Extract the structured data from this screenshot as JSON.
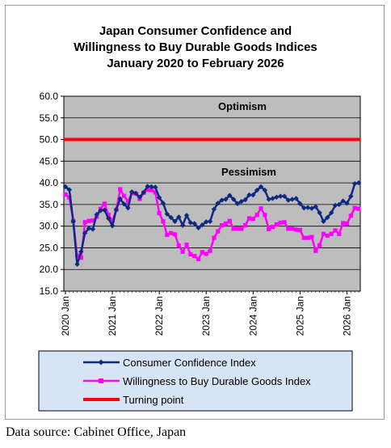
{
  "chart_data": {
    "type": "line",
    "title": [
      "Japan Consumer Confidence and",
      "Willingness to Buy Durable Goods Indices",
      "January 2020 to February 2026"
    ],
    "xlabel": "",
    "ylabel": "",
    "ylim": [
      15,
      60
    ],
    "yticks": [
      "60.0",
      "55.0",
      "50.0",
      "45.0",
      "40.0",
      "35.0",
      "30.0",
      "25.0",
      "20.0",
      "15.0"
    ],
    "xticks": [
      "2020 Jan",
      "2021 Jan",
      "2022 Jan",
      "2023 Jan",
      "2024 Jan",
      "2025 Jan",
      "2026 Jan"
    ],
    "annotations": {
      "upper": "Optimism",
      "lower": "Pessimism"
    },
    "legend_position": "bottom",
    "grid": true,
    "x_start": "2020-01",
    "x_end": "2026-02",
    "series": [
      {
        "name": "Consumer Confidence Index",
        "color": "#0d2a80",
        "marker": "diamond",
        "values": [
          39.1,
          38.4,
          31.1,
          21.2,
          24.1,
          28.4,
          29.5,
          29.3,
          32.7,
          33.6,
          33.7,
          31.8,
          30.1,
          33.8,
          36.3,
          35.1,
          34.2,
          37.9,
          37.6,
          36.7,
          37.8,
          39.2,
          39.1,
          39.0,
          36.6,
          35.3,
          32.8,
          32.0,
          31.1,
          32.1,
          30.2,
          32.5,
          30.8,
          30.6,
          29.6,
          30.3,
          31.0,
          31.1,
          33.9,
          35.3,
          36.0,
          36.2,
          37.1,
          36.2,
          35.2,
          35.7,
          36.1,
          37.2,
          37.2,
          38.3,
          39.1,
          38.3,
          36.2,
          36.4,
          36.7,
          36.9,
          36.9,
          36.0,
          36.2,
          36.4,
          35.2,
          34.2,
          34.3,
          34.1,
          34.5,
          33.1,
          31.1,
          32.0,
          33.1,
          34.8,
          35.0,
          35.8,
          35.3,
          36.9,
          39.8,
          40.0
        ],
        "note_first_point": 39.1
      },
      {
        "name": "Willingness to Buy Durable Goods Index",
        "color": "#ff00ff",
        "marker": "square",
        "values": [
          37.3,
          36.6,
          31.2,
          23.2,
          22.7,
          30.9,
          31.2,
          31.3,
          32.2,
          34.0,
          35.2,
          32.6,
          31.2,
          33.8,
          38.5,
          37.0,
          35.7,
          37.7,
          37.5,
          36.3,
          37.7,
          38.4,
          38.3,
          37.8,
          33.0,
          31.1,
          28.0,
          28.4,
          28.1,
          25.5,
          24.1,
          25.7,
          23.5,
          23.1,
          22.4,
          24.0,
          23.6,
          24.3,
          27.3,
          28.8,
          30.2,
          30.6,
          31.2,
          29.4,
          29.4,
          29.4,
          30.2,
          31.8,
          31.7,
          32.6,
          34.1,
          32.6,
          29.3,
          29.8,
          30.4,
          30.8,
          30.9,
          29.4,
          29.4,
          29.2,
          29.1,
          27.3,
          27.3,
          27.5,
          24.3,
          25.6,
          28.2,
          27.8,
          28.2,
          29.0,
          28.2,
          30.7,
          30.6,
          32.4,
          34.2,
          34.0
        ]
      },
      {
        "name": "Turning point",
        "color": "#ff0000",
        "values": [
          50.0,
          50.0
        ]
      }
    ]
  },
  "source": "Data source: Cabinet Office, Japan"
}
